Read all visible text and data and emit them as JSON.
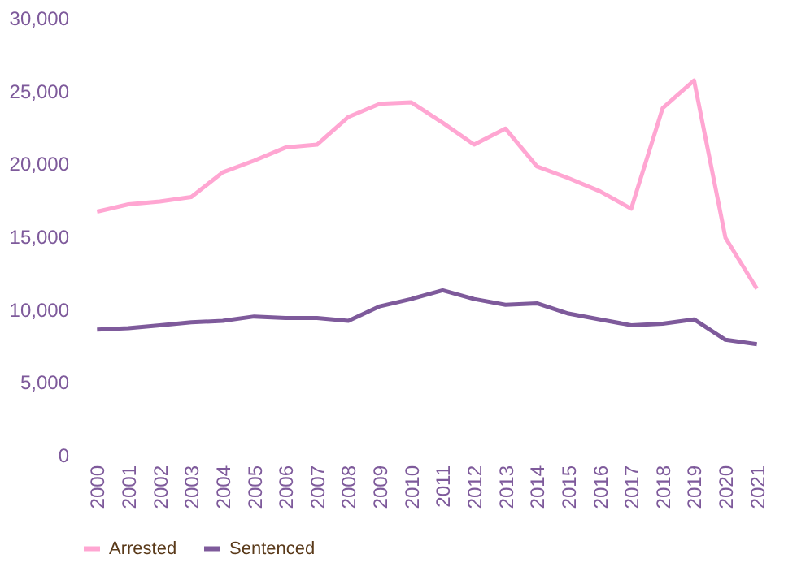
{
  "chart_data": {
    "type": "line",
    "categories": [
      "2000",
      "2001",
      "2002",
      "2003",
      "2004",
      "2005",
      "2006",
      "2007",
      "2008",
      "2009",
      "2010",
      "2011",
      "2012",
      "2013",
      "2014",
      "2015",
      "2016",
      "2017",
      "2018",
      "2019",
      "2020",
      "2021"
    ],
    "series": [
      {
        "name": "Arrested",
        "color": "#ffa6d2",
        "values": [
          16700,
          17200,
          17400,
          17700,
          19400,
          20200,
          21100,
          21300,
          23200,
          24100,
          24200,
          22800,
          21300,
          22400,
          19800,
          19000,
          18100,
          16900,
          23800,
          25700,
          14900,
          11400
        ]
      },
      {
        "name": "Sentenced",
        "color": "#7e5a9b",
        "values": [
          8600,
          8700,
          8900,
          9100,
          9200,
          9500,
          9400,
          9400,
          9200,
          10200,
          10700,
          11300,
          10700,
          10300,
          10400,
          9700,
          9300,
          8900,
          9000,
          9300,
          7900,
          7600
        ]
      }
    ],
    "ylim": [
      0,
      30000
    ],
    "yticks": [
      0,
      {
        "value": 5000,
        "label": "5,000"
      },
      {
        "value": 10000,
        "label": "10,000"
      },
      {
        "value": 15000,
        "label": "15,000"
      },
      {
        "value": 20000,
        "label": "20,000"
      },
      {
        "value": 25000,
        "label": "25,000"
      },
      {
        "value": 30000,
        "label": "30,000"
      }
    ],
    "grid": false,
    "legend": "bottom",
    "marker": "none",
    "line_style": "solid"
  }
}
